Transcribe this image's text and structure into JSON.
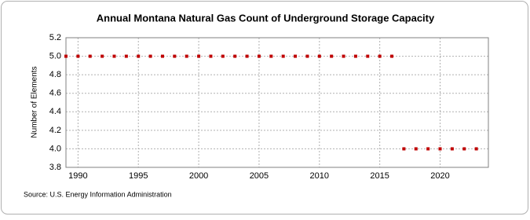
{
  "chart_data": {
    "type": "scatter",
    "title": "Annual Montana Natural Gas Count of Underground Storage Capacity",
    "y_label": "Number of Elements",
    "source": "Source: U.S. Energy Information Administration",
    "x": [
      1989,
      1990,
      1991,
      1992,
      1993,
      1994,
      1995,
      1996,
      1997,
      1998,
      1999,
      2000,
      2001,
      2002,
      2003,
      2004,
      2005,
      2006,
      2007,
      2008,
      2009,
      2010,
      2011,
      2012,
      2013,
      2014,
      2015,
      2016,
      2017,
      2018,
      2019,
      2020,
      2021,
      2022,
      2023
    ],
    "values": [
      5,
      5,
      5,
      5,
      5,
      5,
      5,
      5,
      5,
      5,
      5,
      5,
      5,
      5,
      5,
      5,
      5,
      5,
      5,
      5,
      5,
      5,
      5,
      5,
      5,
      5,
      5,
      5,
      4,
      4,
      4,
      4,
      4,
      4,
      4
    ],
    "color": "#c00000",
    "xlim": [
      1989,
      2024
    ],
    "xticks": [
      1990,
      1995,
      2000,
      2005,
      2010,
      2015,
      2020
    ],
    "ylim": [
      3.8,
      5.2
    ],
    "yticks": [
      3.8,
      {
        "value": 4,
        "label": "4.0"
      },
      4.2,
      4.4,
      4.6,
      4.8,
      {
        "value": 5,
        "label": "5.0"
      },
      5.2
    ],
    "grid": true
  }
}
